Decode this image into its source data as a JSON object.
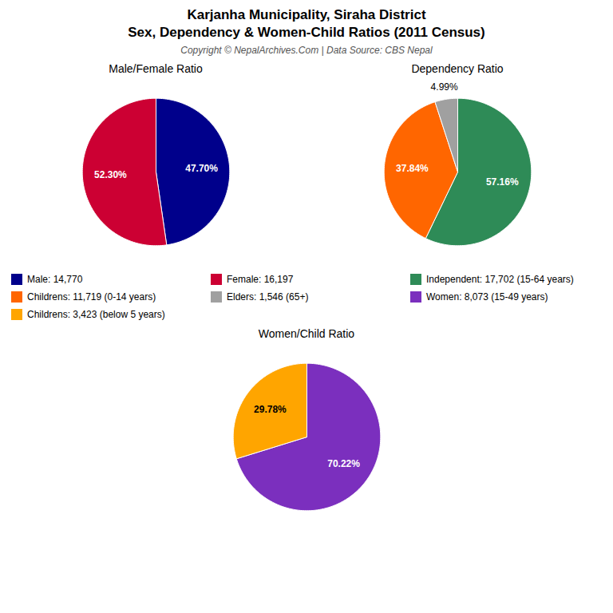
{
  "title": "Karjanha Municipality, Siraha District",
  "subtitle": "Sex, Dependency & Women-Child Ratios (2011 Census)",
  "caption": "Copyright © NepalArchives.Com | Data Source: CBS Nepal",
  "chart_data": [
    {
      "type": "pie",
      "title": "Male/Female Ratio",
      "categories": [
        "Male: 14,770",
        "Female: 16,197"
      ],
      "values": [
        47.7,
        52.3
      ],
      "value_labels": [
        "47.70%",
        "52.30%"
      ],
      "colors": [
        "#00008B",
        "#CC0033"
      ],
      "data_labels": true,
      "legend": "bottom",
      "tick_labels": false
    },
    {
      "type": "pie",
      "title": "Dependency Ratio",
      "categories": [
        "Independent: 17,702 (15-64 years)",
        "Childrens: 11,719 (0-14 years)",
        "Elders: 1,546 (65+)"
      ],
      "values": [
        57.16,
        37.84,
        4.99
      ],
      "value_labels": [
        "57.16%",
        "37.84%",
        "4.99%"
      ],
      "colors": [
        "#2E8B57",
        "#FF6600",
        "#A0A0A0"
      ],
      "data_labels": true,
      "legend": "bottom",
      "tick_labels": false
    },
    {
      "type": "pie",
      "title": "Women/Child Ratio",
      "categories": [
        "Women: 8,073 (15-49 years)",
        "Childrens: 3,423 (below 5 years)"
      ],
      "values": [
        70.22,
        29.78
      ],
      "value_labels": [
        "70.22%",
        "29.78%"
      ],
      "colors": [
        "#7B2FBE",
        "#FFA500"
      ],
      "data_labels": true,
      "legend": "top",
      "tick_labels": false
    }
  ]
}
